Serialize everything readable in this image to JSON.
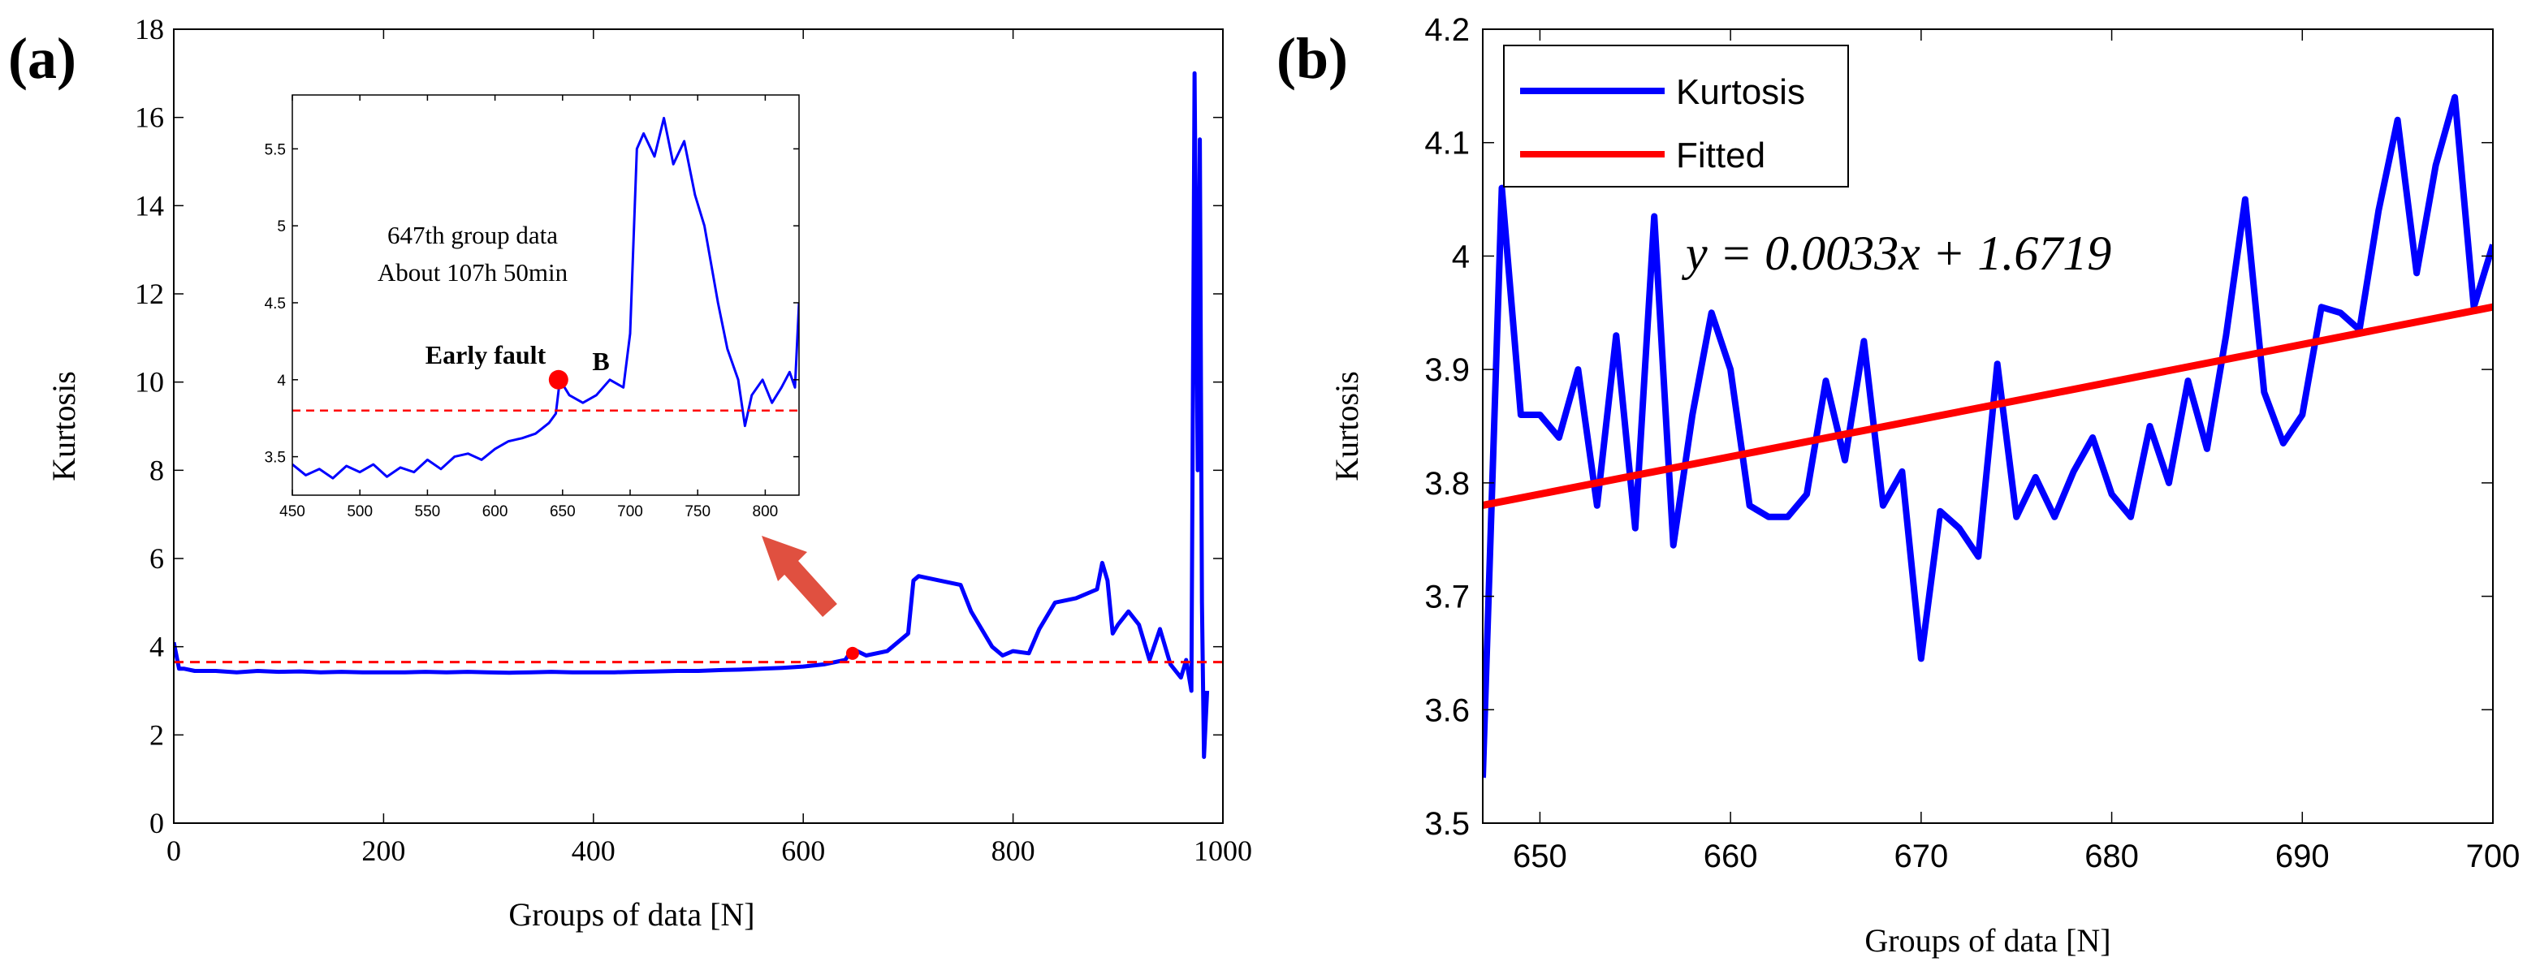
{
  "figure": {
    "panel_a_label": "(a)",
    "panel_b_label": "(b)"
  },
  "colors": {
    "series": "#0000ff",
    "threshold": "#ff0000",
    "fitted": "#ff0000",
    "arrow": "#e05040",
    "marker": "#ff0000"
  },
  "chart_data": [
    {
      "id": "a-main",
      "type": "line",
      "title": "",
      "xlabel": "Groups of data [N]",
      "ylabel": "Kurtosis",
      "xlim": [
        0,
        1000
      ],
      "ylim": [
        0,
        18
      ],
      "xticks": [
        0,
        200,
        400,
        600,
        800,
        1000
      ],
      "yticks": [
        0,
        2,
        4,
        6,
        8,
        10,
        12,
        14,
        16,
        18
      ],
      "threshold_y": 3.65,
      "marker_point": {
        "x": 647,
        "y": 3.85
      },
      "series": [
        {
          "name": "Kurtosis",
          "x": [
            0,
            5,
            10,
            20,
            40,
            60,
            80,
            100,
            120,
            140,
            160,
            180,
            200,
            220,
            240,
            260,
            280,
            300,
            320,
            340,
            360,
            380,
            400,
            420,
            440,
            460,
            480,
            500,
            520,
            540,
            560,
            580,
            600,
            620,
            640,
            647,
            660,
            680,
            700,
            705,
            710,
            730,
            750,
            760,
            780,
            790,
            800,
            815,
            825,
            840,
            860,
            880,
            885,
            890,
            895,
            900,
            910,
            920,
            930,
            940,
            950,
            960,
            965,
            970,
            973,
            976,
            978,
            980,
            982,
            985
          ],
          "y": [
            4.1,
            3.5,
            3.5,
            3.45,
            3.45,
            3.42,
            3.45,
            3.43,
            3.44,
            3.42,
            3.43,
            3.42,
            3.42,
            3.42,
            3.43,
            3.42,
            3.43,
            3.42,
            3.41,
            3.42,
            3.43,
            3.42,
            3.42,
            3.42,
            3.43,
            3.44,
            3.45,
            3.45,
            3.47,
            3.48,
            3.5,
            3.52,
            3.55,
            3.6,
            3.7,
            3.95,
            3.8,
            3.9,
            4.3,
            5.5,
            5.6,
            5.5,
            5.4,
            4.8,
            4.0,
            3.8,
            3.9,
            3.85,
            4.4,
            5.0,
            5.1,
            5.3,
            5.9,
            5.5,
            4.3,
            4.5,
            4.8,
            4.5,
            3.7,
            4.4,
            3.6,
            3.3,
            3.7,
            3.0,
            17.0,
            8.0,
            15.5,
            5.0,
            1.5,
            3.0
          ]
        }
      ]
    },
    {
      "id": "a-inset",
      "type": "line",
      "xlim": [
        450,
        825
      ],
      "ylim": [
        3.25,
        5.85
      ],
      "xticks": [
        450,
        500,
        550,
        600,
        650,
        700,
        750,
        800
      ],
      "yticks": [
        3.5,
        4,
        4.5,
        5,
        5.5
      ],
      "threshold_y": 3.8,
      "annotation_line1": "647th group data",
      "annotation_line2": "About 107h 50min",
      "early_fault_label": "Early fault",
      "point_label": "B",
      "marker_point": {
        "x": 647,
        "y": 4.0
      },
      "series": [
        {
          "name": "Kurtosis",
          "x": [
            450,
            460,
            470,
            480,
            490,
            500,
            510,
            520,
            530,
            540,
            550,
            560,
            570,
            580,
            590,
            600,
            610,
            620,
            630,
            640,
            645,
            648,
            655,
            665,
            675,
            685,
            695,
            700,
            705,
            710,
            718,
            725,
            732,
            740,
            748,
            755,
            765,
            772,
            780,
            785,
            790,
            798,
            805,
            812,
            818,
            822,
            825
          ],
          "y": [
            3.45,
            3.38,
            3.42,
            3.36,
            3.44,
            3.4,
            3.45,
            3.37,
            3.43,
            3.4,
            3.48,
            3.42,
            3.5,
            3.52,
            3.48,
            3.55,
            3.6,
            3.62,
            3.65,
            3.72,
            3.78,
            4.0,
            3.9,
            3.85,
            3.9,
            4.0,
            3.95,
            4.3,
            5.5,
            5.6,
            5.45,
            5.7,
            5.4,
            5.55,
            5.2,
            5.0,
            4.5,
            4.2,
            4.0,
            3.7,
            3.9,
            4.0,
            3.85,
            3.95,
            4.05,
            3.95,
            4.5
          ]
        }
      ]
    },
    {
      "id": "b",
      "type": "line",
      "title": "",
      "xlabel": "Groups of data [N]",
      "ylabel": "Kurtosis",
      "xlim": [
        647,
        700
      ],
      "ylim": [
        3.5,
        4.2
      ],
      "xticks": [
        650,
        660,
        670,
        680,
        690,
        700
      ],
      "yticks": [
        3.5,
        3.6,
        3.7,
        3.8,
        3.9,
        4,
        4.1,
        4.2
      ],
      "ytick_labels": [
        "3.5",
        "3.6",
        "3.7",
        "3.8",
        "3.9",
        "4",
        "4.1",
        "4.2"
      ],
      "legend": [
        "Kurtosis",
        "Fitted"
      ],
      "legend_position": "top-left",
      "equation": "y = 0.0033x + 1.6719",
      "fit": {
        "slope": 0.0033,
        "intercept": 1.6719,
        "x": [
          647,
          700
        ],
        "y": [
          3.7802,
          3.9551
        ]
      },
      "series": [
        {
          "name": "Kurtosis",
          "x": [
            647,
            648,
            649,
            650,
            651,
            652,
            653,
            654,
            655,
            656,
            657,
            658,
            659,
            660,
            661,
            662,
            663,
            664,
            665,
            666,
            667,
            668,
            669,
            670,
            671,
            672,
            673,
            674,
            675,
            676,
            677,
            678,
            679,
            680,
            681,
            682,
            683,
            684,
            685,
            686,
            687,
            688,
            689,
            690,
            691,
            692,
            693,
            694,
            695,
            696,
            697,
            698,
            699,
            700
          ],
          "y": [
            3.54,
            4.06,
            3.86,
            3.86,
            3.84,
            3.9,
            3.78,
            3.93,
            3.76,
            4.035,
            3.745,
            3.86,
            3.95,
            3.9,
            3.78,
            3.77,
            3.77,
            3.79,
            3.89,
            3.82,
            3.925,
            3.78,
            3.81,
            3.645,
            3.775,
            3.76,
            3.735,
            3.905,
            3.77,
            3.805,
            3.77,
            3.81,
            3.84,
            3.79,
            3.77,
            3.85,
            3.8,
            3.89,
            3.83,
            3.93,
            4.05,
            3.88,
            3.835,
            3.86,
            3.955,
            3.95,
            3.935,
            4.04,
            4.12,
            3.985,
            4.08,
            4.14,
            3.955,
            4.01
          ]
        }
      ]
    }
  ]
}
